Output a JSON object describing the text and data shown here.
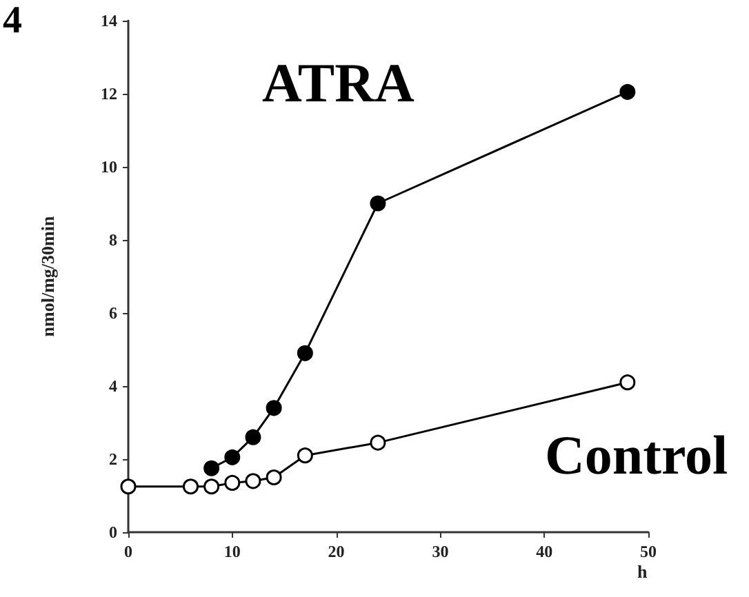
{
  "chart_data": {
    "type": "line",
    "xlabel": "h",
    "ylabel": "nmol/mg/30min",
    "xlim": [
      0,
      50
    ],
    "xticks": [
      0,
      10,
      20,
      30,
      40,
      50
    ],
    "ylim": [
      0,
      14
    ],
    "yticks": [
      0,
      2,
      4,
      6,
      8,
      10,
      12,
      14
    ],
    "grid": false,
    "legend": false,
    "marker": "circle",
    "line_style": "solid",
    "annotations": [
      "4"
    ],
    "series": [
      {
        "name": "ATRA",
        "color": "#000000",
        "x": [
          8,
          10,
          12,
          14,
          17,
          24,
          48
        ],
        "values": [
          1.75,
          2.05,
          2.6,
          3.4,
          4.9,
          9.0,
          12.05
        ]
      },
      {
        "name": "Control",
        "color": "#000000",
        "x": [
          0,
          6,
          8,
          10,
          12,
          14,
          17,
          24,
          48
        ],
        "values": [
          1.25,
          1.25,
          1.25,
          1.35,
          1.4,
          1.5,
          2.1,
          2.45,
          4.1
        ]
      }
    ]
  }
}
